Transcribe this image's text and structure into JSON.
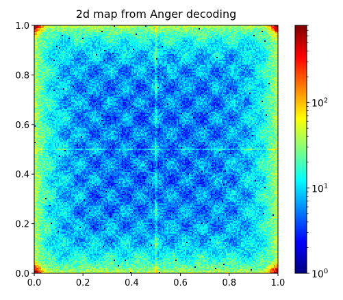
{
  "chart_data": {
    "type": "heatmap",
    "title": "2d map from Anger decoding",
    "xlabel": "",
    "ylabel": "",
    "xlim": [
      0.0,
      1.0
    ],
    "ylim": [
      0.0,
      1.0
    ],
    "x_ticks": [
      "0.0",
      "0.2",
      "0.4",
      "0.6",
      "0.8",
      "1.0"
    ],
    "y_ticks": [
      "0.0",
      "0.2",
      "0.4",
      "0.6",
      "0.8",
      "1.0"
    ],
    "x_tick_values": [
      0.0,
      0.2,
      0.4,
      0.6,
      0.8,
      1.0
    ],
    "y_tick_values": [
      0.0,
      0.2,
      0.4,
      0.6,
      0.8,
      1.0
    ],
    "colormap": "jet",
    "colorbar": {
      "scale": "log",
      "range": [
        1,
        800
      ],
      "ticks": [
        {
          "value": 1,
          "base": "10",
          "exp": "0"
        },
        {
          "value": 10,
          "base": "10",
          "exp": "1"
        },
        {
          "value": 100,
          "base": "10",
          "exp": "2"
        }
      ]
    },
    "description_values": {
      "center_counts": 5,
      "edge_counts": 40,
      "corner_counts": 700,
      "grid_period": 0.125
    }
  }
}
